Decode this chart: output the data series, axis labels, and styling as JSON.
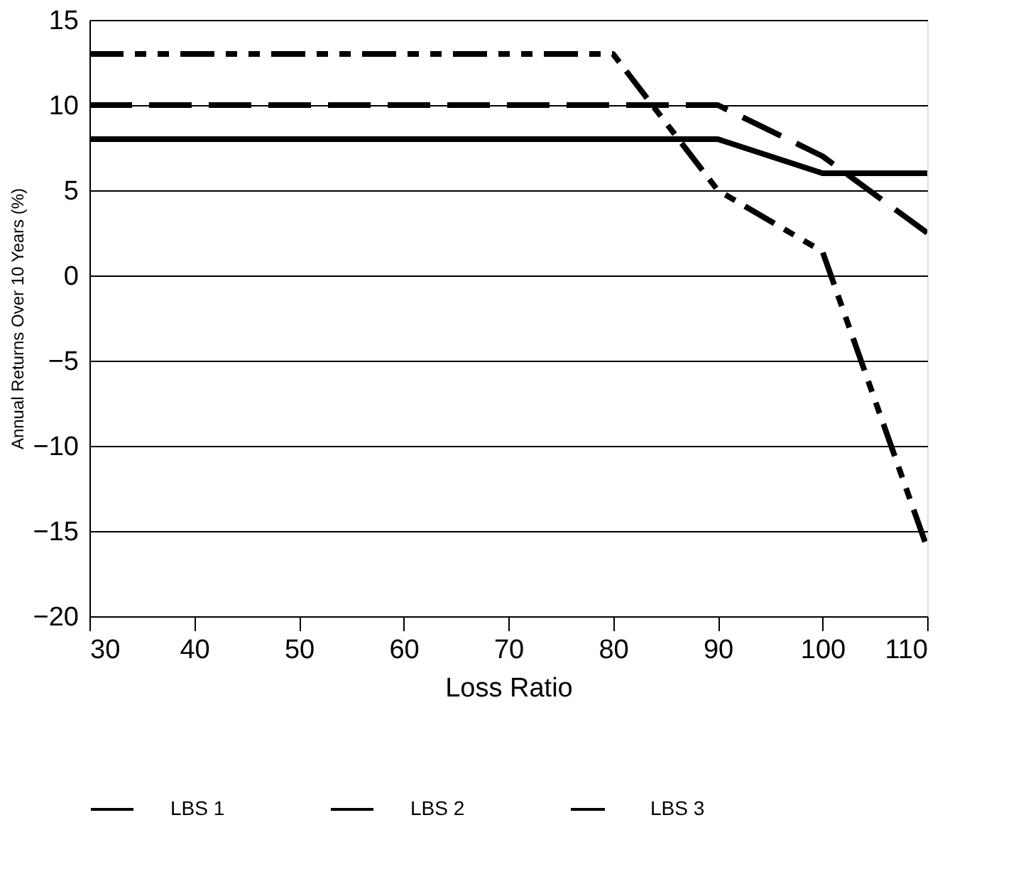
{
  "chart_data": {
    "type": "line",
    "xlabel": "Loss Ratio",
    "ylabel": "Annual Returns Over 10 Years (%)",
    "x": [
      30,
      40,
      50,
      60,
      70,
      80,
      90,
      100,
      110
    ],
    "series": [
      {
        "name": "LBS 1",
        "color": "#000000",
        "line_style": "solid",
        "values": [
          8,
          8,
          8,
          8,
          8,
          8,
          8,
          6,
          6
        ]
      },
      {
        "name": "LBS 2",
        "color": "#000000",
        "line_style": "dashed",
        "values": [
          10,
          10,
          10,
          10,
          10,
          10,
          10,
          7,
          2.5
        ]
      },
      {
        "name": "LBS 3",
        "color": "#000000",
        "line_style": "dotted",
        "values": [
          13,
          13,
          13,
          13,
          13,
          13,
          5,
          1.4,
          -16
        ]
      }
    ],
    "xlim": [
      30,
      110
    ],
    "xticks": [
      30,
      40,
      50,
      60,
      70,
      80,
      90,
      100,
      110
    ],
    "ylim": [
      -20,
      15
    ],
    "yticks": [
      -20,
      -15,
      -10,
      -5,
      0,
      5,
      10,
      15
    ],
    "grid": "y",
    "legend": "bottom",
    "marker": "none"
  }
}
